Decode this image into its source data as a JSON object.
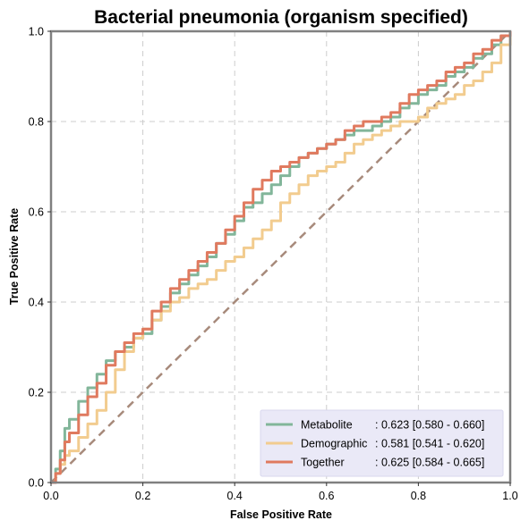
{
  "chart_data": {
    "type": "line",
    "title": "Bacterial pneumonia (organism specified)",
    "xlabel": "False Positive Rate",
    "ylabel": "True Positive Rate",
    "xlim": [
      0,
      1
    ],
    "ylim": [
      0,
      1
    ],
    "xticks": [
      "0.0",
      "0.2",
      "0.4",
      "0.6",
      "0.8",
      "1.0"
    ],
    "yticks": [
      "0.0",
      "0.2",
      "0.4",
      "0.6",
      "0.8",
      "1.0"
    ],
    "grid": true,
    "legend_position": "bottom-right",
    "diagonal_color": "#a78a7b",
    "series": [
      {
        "name": "Metabolite",
        "auc_label": ": 0.623 [0.580 - 0.660]",
        "color": "#82b69a",
        "x": [
          0,
          0.01,
          0.02,
          0.03,
          0.04,
          0.06,
          0.08,
          0.1,
          0.12,
          0.14,
          0.16,
          0.18,
          0.2,
          0.22,
          0.24,
          0.26,
          0.28,
          0.3,
          0.32,
          0.34,
          0.36,
          0.38,
          0.4,
          0.42,
          0.44,
          0.46,
          0.48,
          0.5,
          0.52,
          0.54,
          0.56,
          0.58,
          0.6,
          0.62,
          0.64,
          0.66,
          0.68,
          0.7,
          0.72,
          0.74,
          0.76,
          0.78,
          0.8,
          0.82,
          0.84,
          0.86,
          0.88,
          0.9,
          0.92,
          0.94,
          0.96,
          0.98,
          1.0
        ],
        "y": [
          0,
          0.03,
          0.07,
          0.12,
          0.14,
          0.18,
          0.21,
          0.24,
          0.27,
          0.29,
          0.3,
          0.32,
          0.33,
          0.36,
          0.39,
          0.42,
          0.44,
          0.46,
          0.48,
          0.5,
          0.53,
          0.55,
          0.58,
          0.61,
          0.62,
          0.64,
          0.66,
          0.68,
          0.7,
          0.72,
          0.73,
          0.74,
          0.75,
          0.76,
          0.77,
          0.78,
          0.78,
          0.79,
          0.8,
          0.81,
          0.83,
          0.84,
          0.86,
          0.87,
          0.88,
          0.9,
          0.91,
          0.92,
          0.94,
          0.95,
          0.97,
          0.99,
          1.0
        ]
      },
      {
        "name": "Demographic",
        "auc_label": ": 0.581 [0.541 - 0.620]",
        "color": "#f2cc8f",
        "x": [
          0,
          0.01,
          0.02,
          0.03,
          0.04,
          0.06,
          0.08,
          0.1,
          0.12,
          0.14,
          0.16,
          0.18,
          0.2,
          0.22,
          0.24,
          0.26,
          0.28,
          0.3,
          0.32,
          0.34,
          0.36,
          0.38,
          0.4,
          0.42,
          0.44,
          0.46,
          0.48,
          0.5,
          0.52,
          0.54,
          0.56,
          0.58,
          0.6,
          0.62,
          0.64,
          0.66,
          0.68,
          0.7,
          0.72,
          0.74,
          0.76,
          0.78,
          0.8,
          0.82,
          0.84,
          0.86,
          0.88,
          0.9,
          0.92,
          0.94,
          0.96,
          0.98,
          1.0
        ],
        "y": [
          0,
          0.02,
          0.04,
          0.06,
          0.07,
          0.1,
          0.13,
          0.16,
          0.2,
          0.25,
          0.29,
          0.32,
          0.34,
          0.36,
          0.38,
          0.4,
          0.41,
          0.43,
          0.44,
          0.45,
          0.47,
          0.49,
          0.5,
          0.52,
          0.54,
          0.56,
          0.58,
          0.62,
          0.64,
          0.66,
          0.68,
          0.69,
          0.7,
          0.71,
          0.73,
          0.75,
          0.76,
          0.77,
          0.78,
          0.79,
          0.8,
          0.8,
          0.81,
          0.83,
          0.84,
          0.85,
          0.86,
          0.88,
          0.89,
          0.91,
          0.93,
          0.97,
          1.0
        ]
      },
      {
        "name": "Together",
        "auc_label": ": 0.625 [0.584 - 0.665]",
        "color": "#e07a5f",
        "x": [
          0,
          0.01,
          0.02,
          0.03,
          0.04,
          0.06,
          0.08,
          0.1,
          0.12,
          0.14,
          0.16,
          0.18,
          0.2,
          0.22,
          0.24,
          0.26,
          0.28,
          0.3,
          0.32,
          0.34,
          0.36,
          0.38,
          0.4,
          0.42,
          0.44,
          0.46,
          0.48,
          0.5,
          0.52,
          0.54,
          0.56,
          0.58,
          0.6,
          0.62,
          0.64,
          0.66,
          0.68,
          0.7,
          0.72,
          0.74,
          0.76,
          0.78,
          0.8,
          0.82,
          0.84,
          0.86,
          0.88,
          0.9,
          0.92,
          0.94,
          0.96,
          0.98,
          1.0
        ],
        "y": [
          0,
          0.02,
          0.05,
          0.09,
          0.11,
          0.15,
          0.19,
          0.22,
          0.26,
          0.29,
          0.31,
          0.33,
          0.34,
          0.38,
          0.4,
          0.43,
          0.45,
          0.47,
          0.49,
          0.51,
          0.53,
          0.56,
          0.59,
          0.62,
          0.65,
          0.67,
          0.69,
          0.7,
          0.71,
          0.72,
          0.73,
          0.74,
          0.75,
          0.76,
          0.78,
          0.79,
          0.8,
          0.8,
          0.81,
          0.82,
          0.84,
          0.86,
          0.87,
          0.88,
          0.89,
          0.91,
          0.92,
          0.93,
          0.95,
          0.96,
          0.98,
          0.99,
          1.0
        ]
      }
    ]
  }
}
